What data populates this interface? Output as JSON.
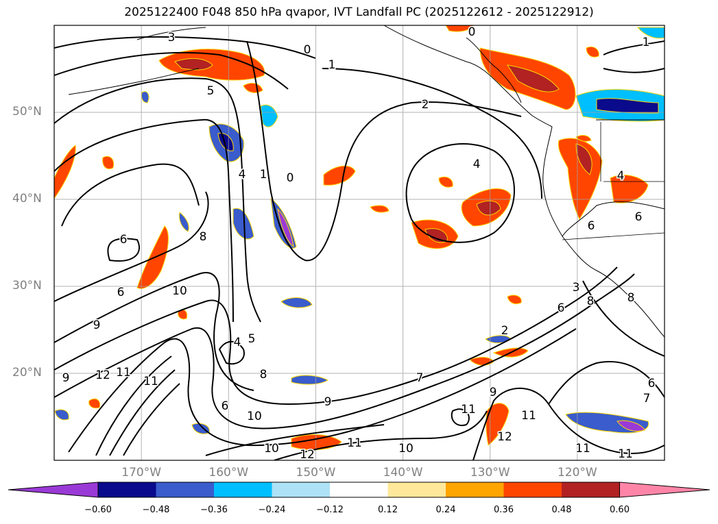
{
  "title": "2025122400 F048 850 hPa qvapor, IVT Landfall PC (2025122612 - 2025122912)",
  "lat_labels": [
    {
      "text": "50°N",
      "lat": 50
    },
    {
      "text": "40°N",
      "lat": 40
    },
    {
      "text": "30°N",
      "lat": 30
    },
    {
      "text": "20°N",
      "lat": 20
    }
  ],
  "lon_labels": [
    {
      "text": "170°W",
      "lon": -170
    },
    {
      "text": "160°W",
      "lon": -160
    },
    {
      "text": "150°W",
      "lon": -150
    },
    {
      "text": "140°W",
      "lon": -140
    },
    {
      "text": "130°W",
      "lon": -130
    },
    {
      "text": "120°W",
      "lon": -120
    }
  ],
  "map_extent": {
    "lon_min": -180,
    "lon_max": -110,
    "lat_min": 10,
    "lat_max": 60
  },
  "colorbar": {
    "ticks": [
      "−0.60",
      "−0.48",
      "−0.36",
      "−0.24",
      "−0.12",
      "0.12",
      "0.24",
      "0.36",
      "0.48",
      "0.60"
    ],
    "colors": [
      "#9a3ad6",
      "#0a0a8c",
      "#3a5ccc",
      "#00bfff",
      "#aee2f6",
      "#ffffff",
      "#ffe89a",
      "#ffa500",
      "#ff4500",
      "#b22222",
      "#ff85a8"
    ]
  },
  "contour_labels": [
    "3",
    "0",
    "0",
    "1",
    "1",
    "5",
    "2",
    "4",
    "0",
    "1",
    "4",
    "6",
    "8",
    "6",
    "10",
    "9",
    "12",
    "11",
    "11",
    "9",
    "4",
    "5",
    "8",
    "6",
    "10",
    "10",
    "12",
    "9",
    "10",
    "11",
    "7",
    "9",
    "11",
    "12",
    "11",
    "11",
    "3",
    "6",
    "8",
    "2",
    "6",
    "8",
    "7",
    "6",
    "11",
    "6",
    "4"
  ]
}
